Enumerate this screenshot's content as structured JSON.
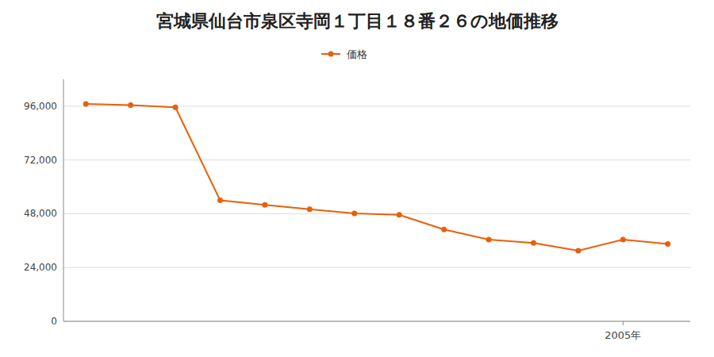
{
  "chart_data": {
    "type": "line",
    "title": "宮城県仙台市泉区寺岡１丁目１８番２６の地価推移",
    "x": [
      1993,
      1994,
      1995,
      1996,
      1997,
      1998,
      1999,
      2000,
      2001,
      2002,
      2003,
      2004,
      2005,
      2006
    ],
    "series": [
      {
        "name": "価格",
        "color": "#E8600A",
        "marker": "circle",
        "values": [
          97000,
          96500,
          95500,
          54000,
          52000,
          50000,
          48200,
          47500,
          41000,
          36500,
          35000,
          31500,
          36500,
          34500
        ]
      }
    ],
    "xlim": [
      1992.5,
      2006.5
    ],
    "xticks": [
      {
        "value": 2005,
        "label": "2005年"
      }
    ],
    "ylim": [
      0,
      108000
    ],
    "yticks": [
      0,
      {
        "value": 24000,
        "label": "24,000"
      },
      {
        "value": 48000,
        "label": "48,000"
      },
      {
        "value": 72000,
        "label": "72,000"
      },
      {
        "value": 96000,
        "label": "96,000"
      }
    ],
    "grid": true,
    "legend": "top"
  }
}
